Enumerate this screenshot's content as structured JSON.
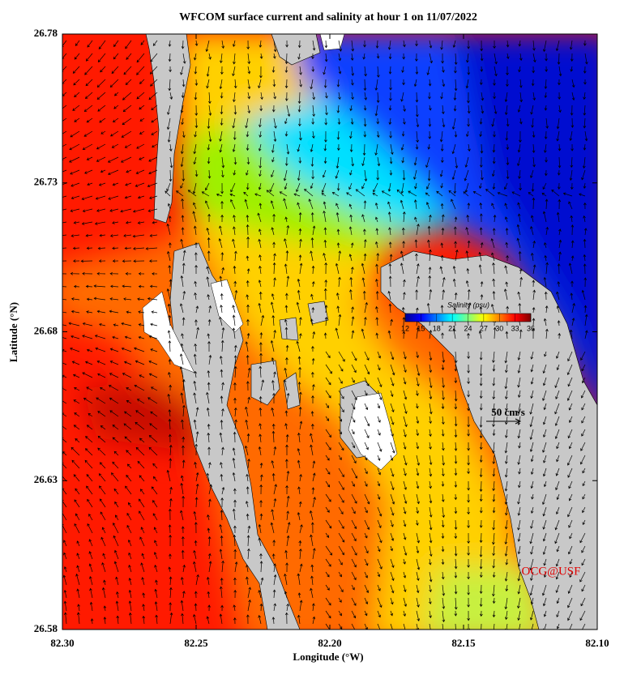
{
  "title": "WFCOM surface current and salinity at hour 1 on 11/07/2022",
  "x_label": "Longitude (°W)",
  "y_label": "Latitude (°N)",
  "xlim": [
    82.3,
    82.1
  ],
  "ylim": [
    26.58,
    26.78
  ],
  "xticks": [
    {
      "value": 82.3,
      "label": "82.30"
    },
    {
      "value": 82.25,
      "label": "82.25"
    },
    {
      "value": 82.2,
      "label": "82.20"
    },
    {
      "value": 82.15,
      "label": "82.15"
    },
    {
      "value": 82.1,
      "label": "82.10"
    }
  ],
  "yticks": [
    26.58,
    26.63,
    26.68,
    26.73,
    26.78
  ],
  "colorbar": {
    "title": "Salinity (psu)",
    "lim": [
      12,
      36
    ],
    "ticks": [
      12,
      15,
      18,
      21,
      24,
      27,
      30,
      33,
      36
    ]
  },
  "scale_label": "50 cm/s",
  "credit": "OCG@USF"
}
